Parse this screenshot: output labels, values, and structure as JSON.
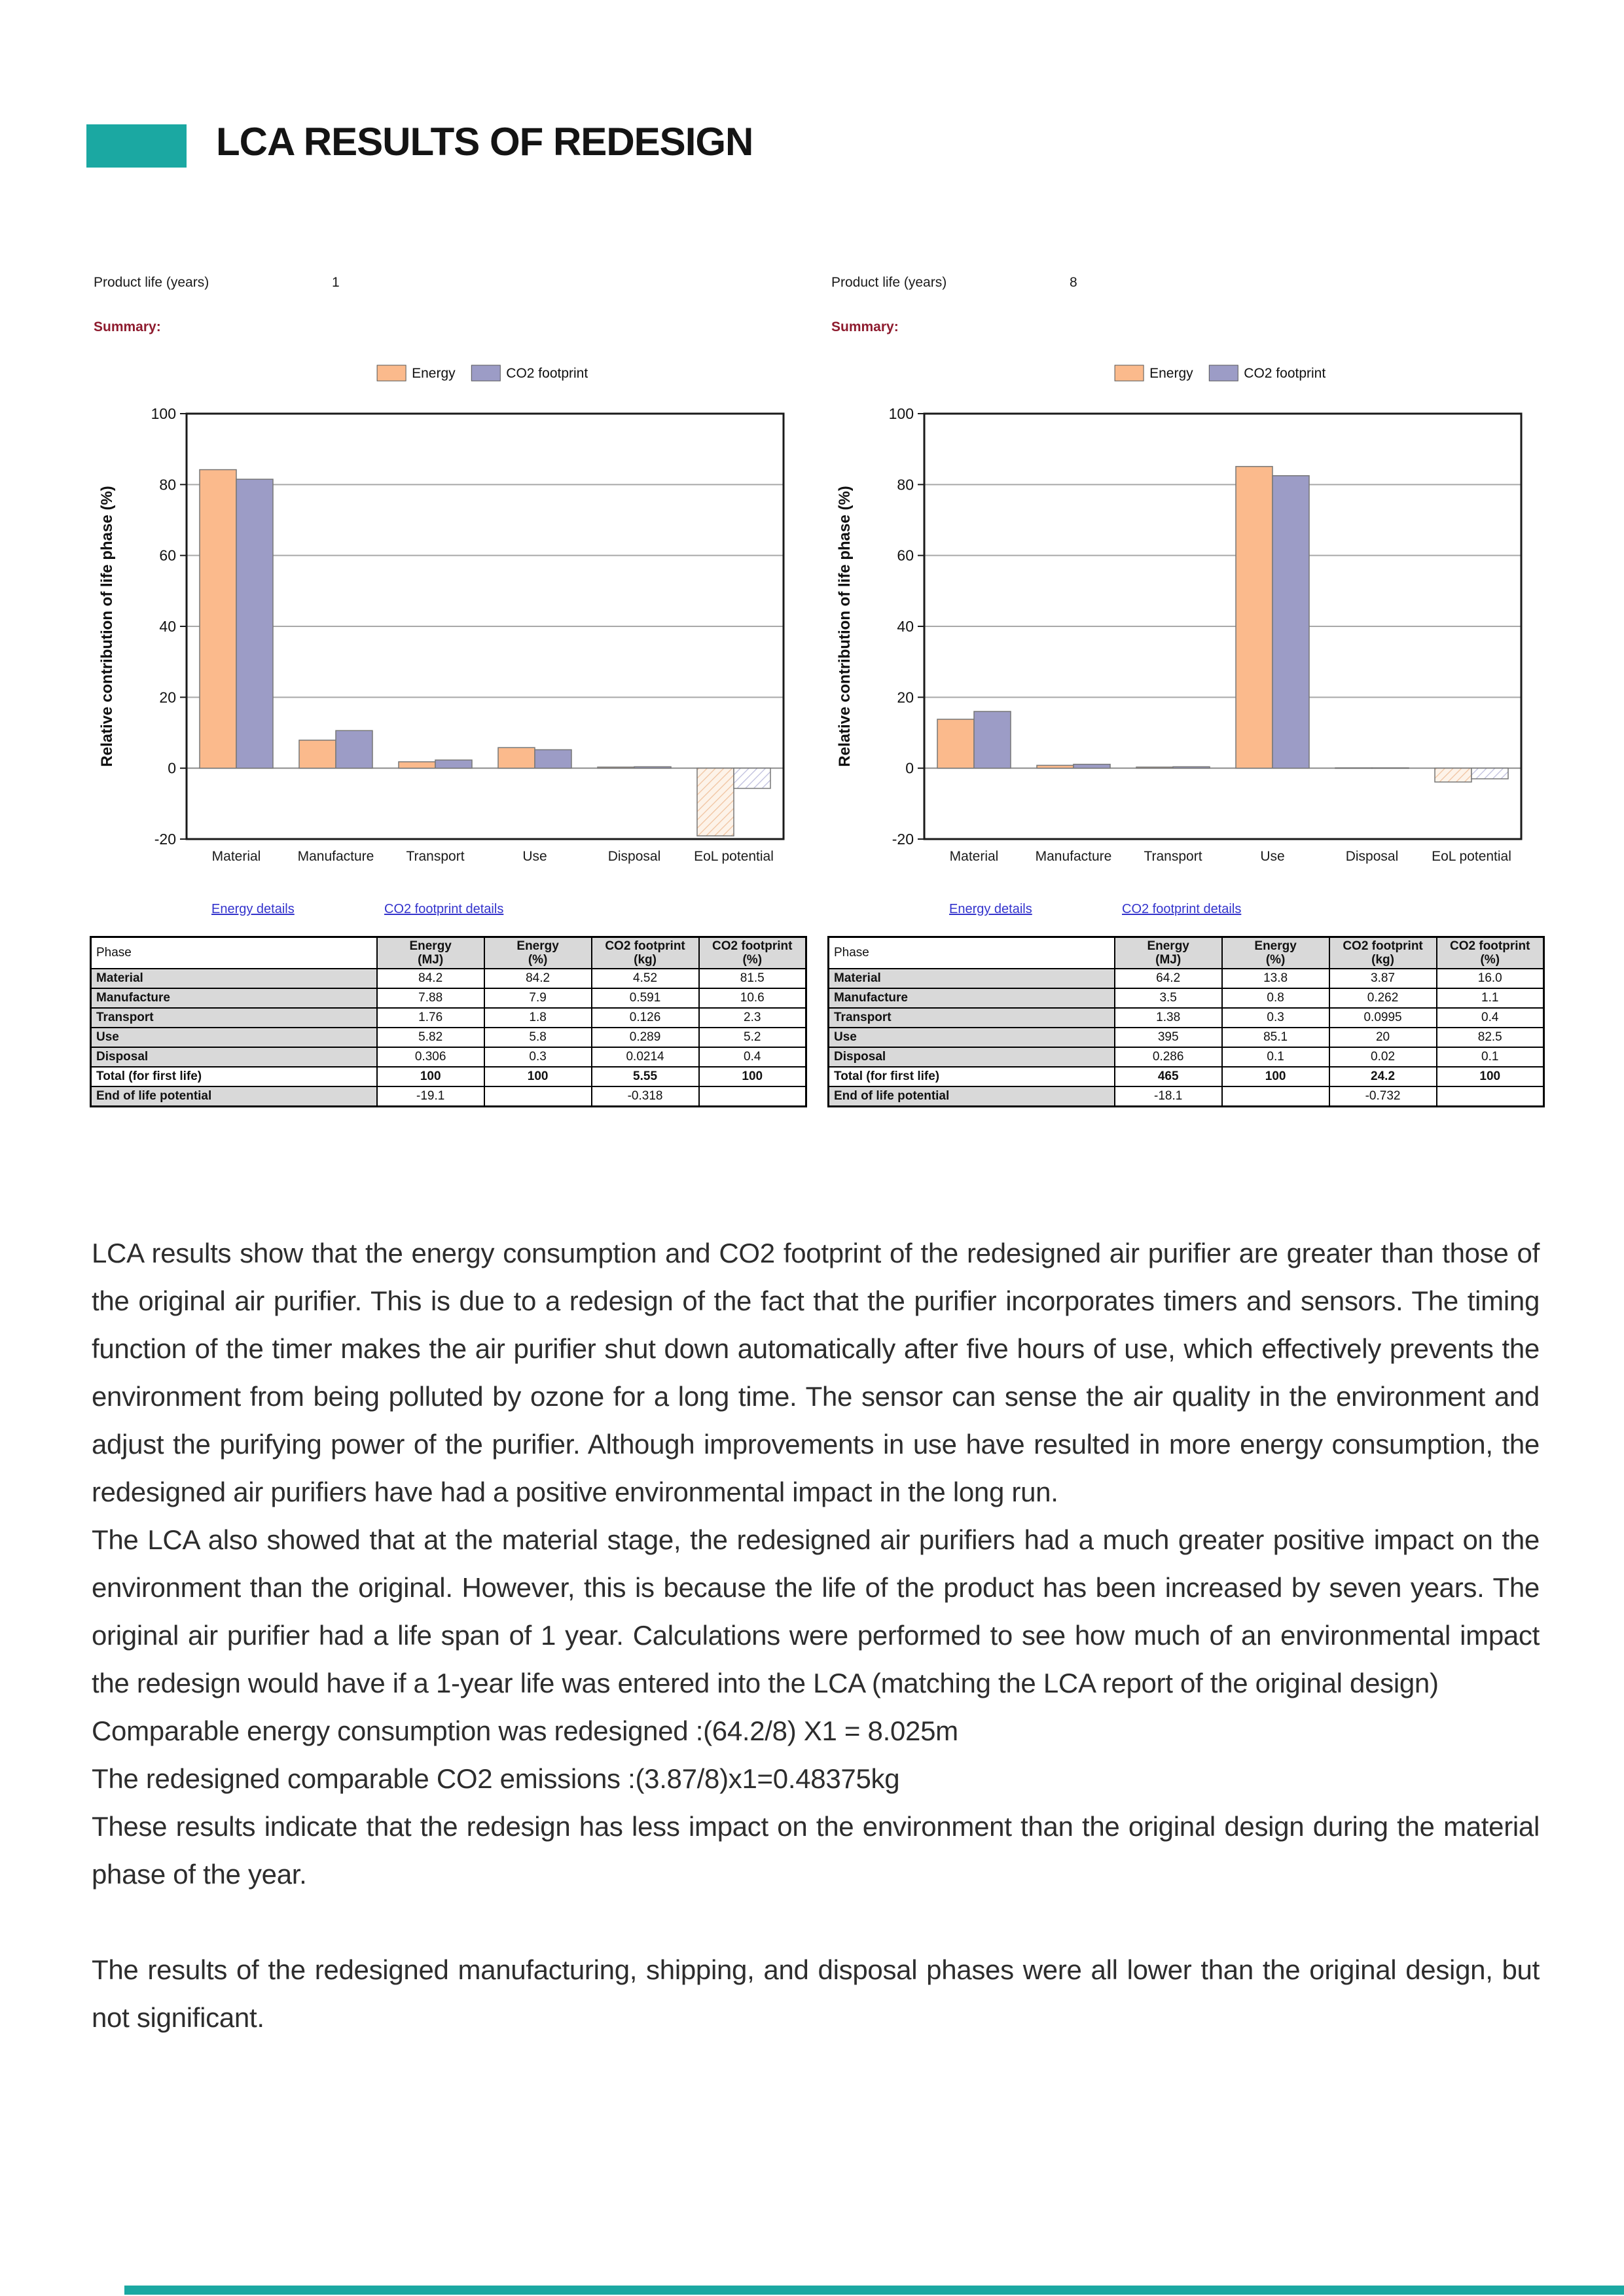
{
  "page": {
    "title": "LCA RESULTS OF REDESIGN",
    "accent_color": "#1BA8A2",
    "background": "#FFFFFF"
  },
  "panels": [
    {
      "product_life_label": "Product life (years)",
      "product_life_value": "1",
      "summary_label": "Summary:",
      "links": [
        {
          "label": "Energy details"
        },
        {
          "label": "CO2 footprint details"
        }
      ],
      "chart_data": {
        "type": "bar",
        "categories": [
          "Material",
          "Manufacture",
          "Transport",
          "Use",
          "Disposal",
          "EoL potential"
        ],
        "series": [
          {
            "name": "Energy",
            "color": "#FBBA8C",
            "hatch_bg": "#FDF3E9",
            "hatch_line": "#F0C29E",
            "values": [
              84.2,
              7.9,
              1.8,
              5.8,
              0.3,
              -19.1
            ]
          },
          {
            "name": "CO2 footprint",
            "color": "#9C9CC6",
            "hatch_bg": "#FFFFFF",
            "hatch_line": "#BCBCDC",
            "values": [
              81.5,
              10.6,
              2.3,
              5.2,
              0.4,
              -5.7
            ]
          }
        ],
        "ylabel": "Relative contribution of life phase (%)",
        "ylim": [
          -20,
          100
        ],
        "yticks": [
          100,
          80,
          60,
          40,
          20,
          0,
          -20
        ],
        "grid": true,
        "legend_position": "top",
        "negative_bars_hatched": true
      },
      "table": {
        "headers": [
          "Phase",
          "Energy\n(MJ)",
          "Energy\n(%)",
          "CO2 footprint\n(kg)",
          "CO2 footprint\n(%)"
        ],
        "rows": [
          {
            "label": "Material",
            "label_shaded": true,
            "cells": [
              {
                "t": "84.2"
              },
              {
                "t": "84.2"
              },
              {
                "t": "4.52"
              },
              {
                "t": "81.5"
              }
            ]
          },
          {
            "label": "Manufacture",
            "label_shaded": true,
            "cells": [
              {
                "t": "7.88"
              },
              {
                "t": "7.9"
              },
              {
                "t": "0.591"
              },
              {
                "t": "10.6"
              }
            ]
          },
          {
            "label": "Transport",
            "label_shaded": true,
            "cells": [
              {
                "t": "1.76"
              },
              {
                "t": "1.8"
              },
              {
                "t": "0.126"
              },
              {
                "t": "2.3"
              }
            ]
          },
          {
            "label": "Use",
            "label_shaded": true,
            "cells": [
              {
                "t": "5.82"
              },
              {
                "t": "5.8"
              },
              {
                "t": "0.289"
              },
              {
                "t": "5.2"
              }
            ]
          },
          {
            "label": "Disposal",
            "label_shaded": true,
            "cells": [
              {
                "t": "0.306"
              },
              {
                "t": "0.3"
              },
              {
                "t": "0.0214"
              },
              {
                "t": "0.4"
              }
            ]
          },
          {
            "label": "Total (for first life)",
            "label_shaded": false,
            "cells": [
              {
                "t": "100",
                "shaded": true,
                "bold": true
              },
              {
                "t": "100",
                "shaded": true,
                "bold": true
              },
              {
                "t": "5.55",
                "shaded": true,
                "bold": true
              },
              {
                "t": "100",
                "shaded": true,
                "bold": true
              }
            ]
          },
          {
            "label": "End of life potential",
            "label_shaded": true,
            "cells": [
              {
                "t": "-19.1"
              },
              {
                "t": "",
                "shaded": true
              },
              {
                "t": "-0.318"
              },
              {
                "t": ""
              }
            ]
          }
        ]
      }
    },
    {
      "product_life_label": "Product life (years)",
      "product_life_value": "8",
      "summary_label": "Summary:",
      "links": [
        {
          "label": "Energy details"
        },
        {
          "label": "CO2 footprint details"
        }
      ],
      "chart_data": {
        "type": "bar",
        "categories": [
          "Material",
          "Manufacture",
          "Transport",
          "Use",
          "Disposal",
          "EoL potential"
        ],
        "series": [
          {
            "name": "Energy",
            "color": "#FBBA8C",
            "hatch_bg": "#FDF3E9",
            "hatch_line": "#F0C29E",
            "values": [
              13.8,
              0.8,
              0.3,
              85.1,
              0.1,
              -3.9
            ]
          },
          {
            "name": "CO2 footprint",
            "color": "#9C9CC6",
            "hatch_bg": "#FFFFFF",
            "hatch_line": "#BCBCDC",
            "values": [
              16.0,
              1.1,
              0.4,
              82.5,
              0.1,
              -3.0
            ]
          }
        ],
        "ylabel": "Relative contribution of life phase (%)",
        "ylim": [
          -20,
          100
        ],
        "yticks": [
          100,
          80,
          60,
          40,
          20,
          0,
          -20
        ],
        "grid": true,
        "legend_position": "top",
        "negative_bars_hatched": true
      },
      "table": {
        "headers": [
          "Phase",
          "Energy\n(MJ)",
          "Energy\n(%)",
          "CO2 footprint\n(kg)",
          "CO2 footprint\n(%)"
        ],
        "rows": [
          {
            "label": "Material",
            "label_shaded": true,
            "cells": [
              {
                "t": "64.2"
              },
              {
                "t": "13.8"
              },
              {
                "t": "3.87"
              },
              {
                "t": "16.0"
              }
            ]
          },
          {
            "label": "Manufacture",
            "label_shaded": true,
            "cells": [
              {
                "t": "3.5"
              },
              {
                "t": "0.8"
              },
              {
                "t": "0.262"
              },
              {
                "t": "1.1"
              }
            ]
          },
          {
            "label": "Transport",
            "label_shaded": true,
            "cells": [
              {
                "t": "1.38"
              },
              {
                "t": "0.3"
              },
              {
                "t": "0.0995"
              },
              {
                "t": "0.4"
              }
            ]
          },
          {
            "label": "Use",
            "label_shaded": true,
            "cells": [
              {
                "t": "395"
              },
              {
                "t": "85.1"
              },
              {
                "t": "20"
              },
              {
                "t": "82.5"
              }
            ]
          },
          {
            "label": "Disposal",
            "label_shaded": true,
            "cells": [
              {
                "t": "0.286"
              },
              {
                "t": "0.1"
              },
              {
                "t": "0.02"
              },
              {
                "t": "0.1"
              }
            ]
          },
          {
            "label": "Total (for first life)",
            "label_shaded": false,
            "cells": [
              {
                "t": "465",
                "shaded": true,
                "bold": true
              },
              {
                "t": "100",
                "shaded": true,
                "bold": true
              },
              {
                "t": "24.2",
                "shaded": true,
                "bold": true
              },
              {
                "t": "100",
                "shaded": true,
                "bold": true
              }
            ]
          },
          {
            "label": "End of life potential",
            "label_shaded": true,
            "cells": [
              {
                "t": "-18.1"
              },
              {
                "t": "",
                "shaded": true
              },
              {
                "t": "-0.732"
              },
              {
                "t": ""
              }
            ]
          }
        ]
      }
    }
  ],
  "body_paragraphs": [
    "LCA results show that the energy consumption and CO2 footprint of the redesigned air purifier are greater than those of the original air purifier. This is due to a redesign of the fact that the purifier incorporates timers and sensors. The timing function of the timer makes the air purifier shut down automatically after five hours of use, which effectively prevents the environment from being polluted by ozone for a long time. The sensor can sense the air quality in the environment and adjust the purifying power of the purifier. Although improvements in use have resulted in more energy consumption, the redesigned air purifiers have had a positive environmental impact in the long run.",
    "The LCA also showed that at the material stage, the redesigned air purifiers had a much greater positive impact on the environment than the original. However, this is because the life of the product has been increased by seven years. The original air purifier had a life span of 1 year. Calculations were performed to see how much of an environmental impact the redesign would have if a 1-year life was entered into the LCA (matching the LCA report of the original design)",
    "Comparable energy consumption was redesigned :(64.2/8) X1 = 8.025m",
    "The redesigned comparable CO2 emissions :(3.87/8)x1=0.48375kg",
    "These results indicate that the redesign has less impact on the environment than the original design during the material phase of the year.",
    "",
    "The results of the redesigned manufacturing, shipping, and disposal phases were all lower than the original design, but not significant."
  ],
  "footer": {
    "color": "#1BA8A2"
  }
}
